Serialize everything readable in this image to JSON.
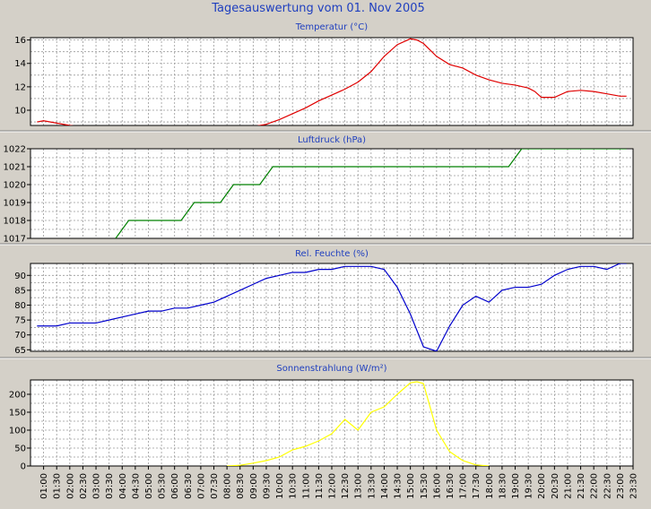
{
  "page": {
    "title": "Tagesauswertung vom 01. Nov 2005",
    "colors": {
      "background": "#d4d0c8",
      "plot_bg": "#ffffff",
      "title": "#1f3fbf",
      "grid": "#9a9a9a"
    }
  },
  "time_labels": [
    "01:00",
    "01:30",
    "02:00",
    "02:30",
    "03:00",
    "03:30",
    "04:00",
    "04:30",
    "05:00",
    "05:30",
    "06:00",
    "06:30",
    "07:00",
    "07:30",
    "08:00",
    "08:30",
    "09:00",
    "09:30",
    "10:00",
    "10:30",
    "11:00",
    "11:30",
    "12:00",
    "12:30",
    "13:00",
    "13:30",
    "14:00",
    "14:30",
    "15:00",
    "15:30",
    "16:00",
    "16:30",
    "17:00",
    "17:30",
    "18:00",
    "18:30",
    "19:00",
    "19:30",
    "20:00",
    "20:30",
    "21:00",
    "21:30",
    "22:00",
    "22:30",
    "23:00",
    "23:30"
  ],
  "chart_data": [
    {
      "type": "line",
      "title": "Temperatur (°C)",
      "color": "#e00000",
      "ylim": [
        8.7,
        16.2
      ],
      "yticks": [
        10,
        12,
        14,
        16
      ],
      "grid": true,
      "series": [
        {
          "points": [
            [
              0.5,
              9.0
            ],
            [
              1.0,
              9.1
            ],
            [
              2.0,
              8.9
            ],
            [
              3.0,
              8.7
            ],
            [
              4.0,
              8.55
            ],
            [
              5.0,
              8.45
            ],
            [
              6.0,
              8.2
            ],
            [
              7.0,
              8.1
            ],
            [
              8.0,
              8.1
            ],
            [
              9.0,
              8.15
            ],
            [
              10.0,
              8.25
            ],
            [
              11.0,
              8.35
            ],
            [
              12.0,
              8.4
            ],
            [
              13.0,
              8.4
            ],
            [
              14.0,
              8.5
            ],
            [
              15.0,
              8.55
            ],
            [
              16.0,
              8.6
            ],
            [
              17.0,
              8.6
            ],
            [
              18.0,
              8.8
            ],
            [
              19.0,
              9.2
            ],
            [
              20.0,
              9.7
            ],
            [
              21.0,
              10.2
            ],
            [
              22.0,
              10.8
            ],
            [
              23.0,
              11.3
            ],
            [
              24.0,
              11.8
            ],
            [
              25.0,
              12.4
            ],
            [
              26.0,
              13.3
            ],
            [
              27.0,
              14.6
            ],
            [
              28.0,
              15.6
            ],
            [
              29.0,
              16.1
            ],
            [
              29.5,
              16.0
            ],
            [
              30.0,
              15.7
            ],
            [
              31.0,
              14.6
            ],
            [
              32.0,
              13.9
            ],
            [
              33.0,
              13.6
            ],
            [
              34.0,
              13.0
            ],
            [
              35.0,
              12.6
            ],
            [
              36.0,
              12.3
            ],
            [
              37.0,
              12.15
            ],
            [
              38.0,
              11.9
            ],
            [
              38.5,
              11.6
            ],
            [
              39.0,
              11.1
            ],
            [
              40.0,
              11.1
            ],
            [
              41.0,
              11.6
            ],
            [
              42.0,
              11.7
            ],
            [
              43.0,
              11.6
            ],
            [
              44.0,
              11.4
            ],
            [
              45.0,
              11.2
            ],
            [
              45.5,
              11.2
            ]
          ]
        }
      ]
    },
    {
      "type": "line",
      "title": "Luftdruck (hPa)",
      "color": "#008000",
      "ylim": [
        1017,
        1022
      ],
      "yticks": [
        1017,
        1018,
        1019,
        1020,
        1021,
        1022
      ],
      "grid": true,
      "series": [
        {
          "points": [
            [
              6.5,
              1017
            ],
            [
              7.5,
              1018
            ],
            [
              11.5,
              1018
            ],
            [
              12.5,
              1019
            ],
            [
              14.5,
              1019
            ],
            [
              15.5,
              1020
            ],
            [
              17.5,
              1020
            ],
            [
              18.5,
              1021
            ],
            [
              36.5,
              1021
            ],
            [
              37.5,
              1022
            ],
            [
              45.5,
              1022
            ]
          ]
        }
      ]
    },
    {
      "type": "line",
      "title": "Rel. Feuchte (%)",
      "color": "#0000cc",
      "ylim": [
        64.5,
        94
      ],
      "yticks": [
        65,
        70,
        75,
        80,
        85,
        90
      ],
      "grid": true,
      "series": [
        {
          "points": [
            [
              0.5,
              73
            ],
            [
              2.0,
              73
            ],
            [
              3.0,
              74
            ],
            [
              5.0,
              74
            ],
            [
              6.0,
              75
            ],
            [
              8.0,
              77
            ],
            [
              9.0,
              78
            ],
            [
              10.0,
              78
            ],
            [
              11.0,
              79
            ],
            [
              12.0,
              79
            ],
            [
              13.0,
              80
            ],
            [
              14.0,
              81
            ],
            [
              15.0,
              83
            ],
            [
              16.0,
              85
            ],
            [
              17.0,
              87
            ],
            [
              18.0,
              89
            ],
            [
              19.0,
              90
            ],
            [
              20.0,
              91
            ],
            [
              21.0,
              91
            ],
            [
              22.0,
              92
            ],
            [
              23.0,
              92
            ],
            [
              24.0,
              93
            ],
            [
              26.0,
              93
            ],
            [
              27.0,
              92
            ],
            [
              28.0,
              86
            ],
            [
              29.0,
              77
            ],
            [
              30.0,
              66
            ],
            [
              31.0,
              64.5
            ],
            [
              32.0,
              73
            ],
            [
              33.0,
              80
            ],
            [
              34.0,
              83
            ],
            [
              35.0,
              81
            ],
            [
              36.0,
              85
            ],
            [
              37.0,
              86
            ],
            [
              38.0,
              86
            ],
            [
              39.0,
              87
            ],
            [
              40.0,
              90
            ],
            [
              41.0,
              92
            ],
            [
              42.0,
              93
            ],
            [
              43.0,
              93
            ],
            [
              44.0,
              92
            ],
            [
              45.0,
              94
            ],
            [
              45.5,
              94
            ]
          ]
        }
      ]
    },
    {
      "type": "line",
      "title": "Sonnenstrahlung (W/m²)",
      "color": "#ffff00",
      "ylim": [
        0,
        240
      ],
      "yticks": [
        0,
        50,
        100,
        150,
        200
      ],
      "grid": true,
      "series": [
        {
          "points": [
            [
              15.0,
              0
            ],
            [
              16.0,
              2
            ],
            [
              17.0,
              8
            ],
            [
              18.0,
              15
            ],
            [
              19.0,
              25
            ],
            [
              20.0,
              45
            ],
            [
              21.0,
              55
            ],
            [
              22.0,
              70
            ],
            [
              23.0,
              90
            ],
            [
              24.0,
              130
            ],
            [
              25.0,
              100
            ],
            [
              26.0,
              150
            ],
            [
              27.0,
              165
            ],
            [
              28.0,
              200
            ],
            [
              29.0,
              232
            ],
            [
              29.5,
              235
            ],
            [
              30.0,
              230
            ],
            [
              31.0,
              100
            ],
            [
              32.0,
              40
            ],
            [
              33.0,
              15
            ],
            [
              34.0,
              3
            ],
            [
              35.0,
              0
            ]
          ]
        }
      ]
    }
  ]
}
